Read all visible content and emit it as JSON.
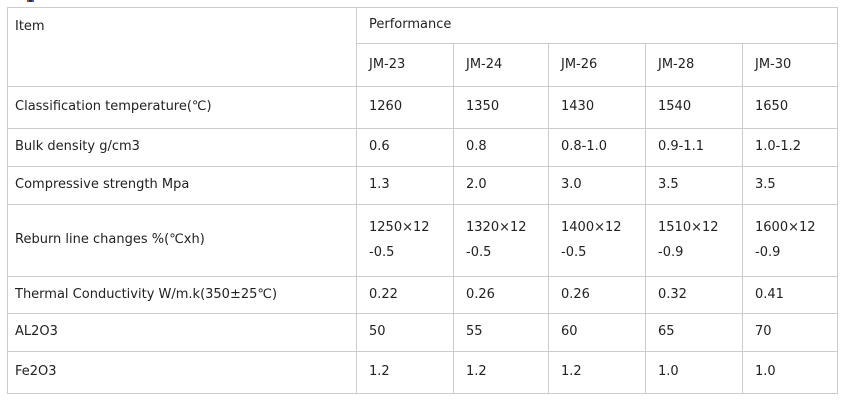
{
  "chart_data": {
    "type": "table",
    "header": {
      "item": "Item",
      "performance": "Performance",
      "models": [
        "JM-23",
        "JM-24",
        "JM-26",
        "JM-28",
        "JM-30"
      ]
    },
    "rows": [
      {
        "label": "Classification temperature(℃)",
        "values": [
          "1260",
          "1350",
          "1430",
          "1540",
          "1650"
        ]
      },
      {
        "label": "Bulk density g/cm3",
        "values": [
          "0.6",
          "0.8",
          "0.8-1.0",
          "0.9-1.1",
          "1.0-1.2"
        ]
      },
      {
        "label": "Compressive strength Mpa",
        "values": [
          "1.3",
          "2.0",
          "3.0",
          "3.5",
          "3.5"
        ]
      },
      {
        "label": "Reburn line changes %(℃xh)",
        "values": [
          "1250×12\n-0.5",
          "1320×12\n-0.5",
          "1400×12\n-0.5",
          "1510×12\n-0.9",
          "1600×12\n-0.9"
        ]
      },
      {
        "label": "Thermal Conductivity W/m.k(350±25℃)",
        "values": [
          "0.22",
          "0.26",
          "0.26",
          "0.32",
          "0.41"
        ]
      },
      {
        "label": "AL2O3",
        "values": [
          "50",
          "55",
          "60",
          "65",
          "70"
        ]
      },
      {
        "label": "Fe2O3",
        "values": [
          "1.2",
          "1.2",
          "1.2",
          "1.0",
          "1.0"
        ]
      }
    ],
    "colors": {
      "border": "#cccccc",
      "text": "#222222",
      "background": "#ffffff"
    },
    "layout": {
      "grid": "full-borders",
      "item_cell_rowspan": 2,
      "performance_cell_colspan": 5
    }
  }
}
